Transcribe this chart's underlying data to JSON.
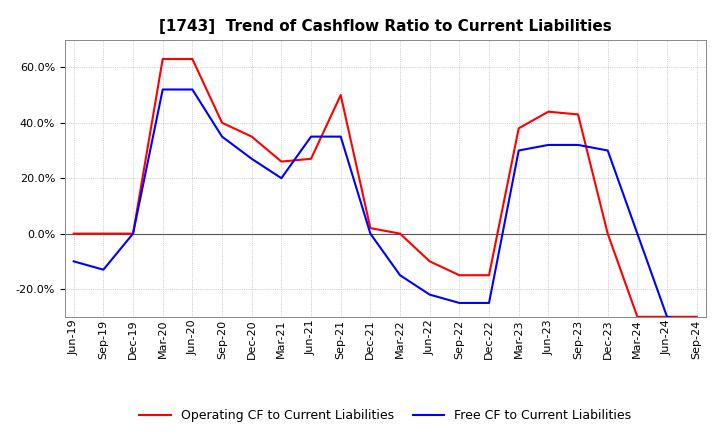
{
  "title": "[1743]  Trend of Cashflow Ratio to Current Liabilities",
  "x_labels": [
    "Jun-19",
    "Sep-19",
    "Dec-19",
    "Mar-20",
    "Jun-20",
    "Sep-20",
    "Dec-20",
    "Mar-21",
    "Jun-21",
    "Sep-21",
    "Dec-21",
    "Mar-22",
    "Jun-22",
    "Sep-22",
    "Dec-22",
    "Mar-23",
    "Jun-23",
    "Sep-23",
    "Dec-23",
    "Mar-24",
    "Jun-24",
    "Sep-24"
  ],
  "operating_cf": [
    0.0,
    0.0,
    0.0,
    63.0,
    63.0,
    40.0,
    35.0,
    26.0,
    27.0,
    50.0,
    2.0,
    0.0,
    -10.0,
    -15.0,
    -15.0,
    38.0,
    44.0,
    43.0,
    0.0,
    -30.0,
    -30.0,
    -30.0
  ],
  "free_cf": [
    -10.0,
    -13.0,
    0.0,
    52.0,
    52.0,
    35.0,
    27.0,
    20.0,
    35.0,
    35.0,
    0.0,
    -15.0,
    -22.0,
    -25.0,
    -25.0,
    30.0,
    32.0,
    32.0,
    30.0,
    0.0,
    -30.0,
    -32.0
  ],
  "ylim": [
    -30,
    70
  ],
  "yticks": [
    -20.0,
    0.0,
    20.0,
    40.0,
    60.0
  ],
  "operating_color": "#FF0000",
  "free_color": "#0000FF",
  "background_color": "#FFFFFF",
  "grid_color": "#AAAAAA",
  "legend_operating": "Operating CF to Current Liabilities",
  "legend_free": "Free CF to Current Liabilities",
  "title_fontsize": 11,
  "tick_fontsize": 8,
  "legend_fontsize": 9
}
